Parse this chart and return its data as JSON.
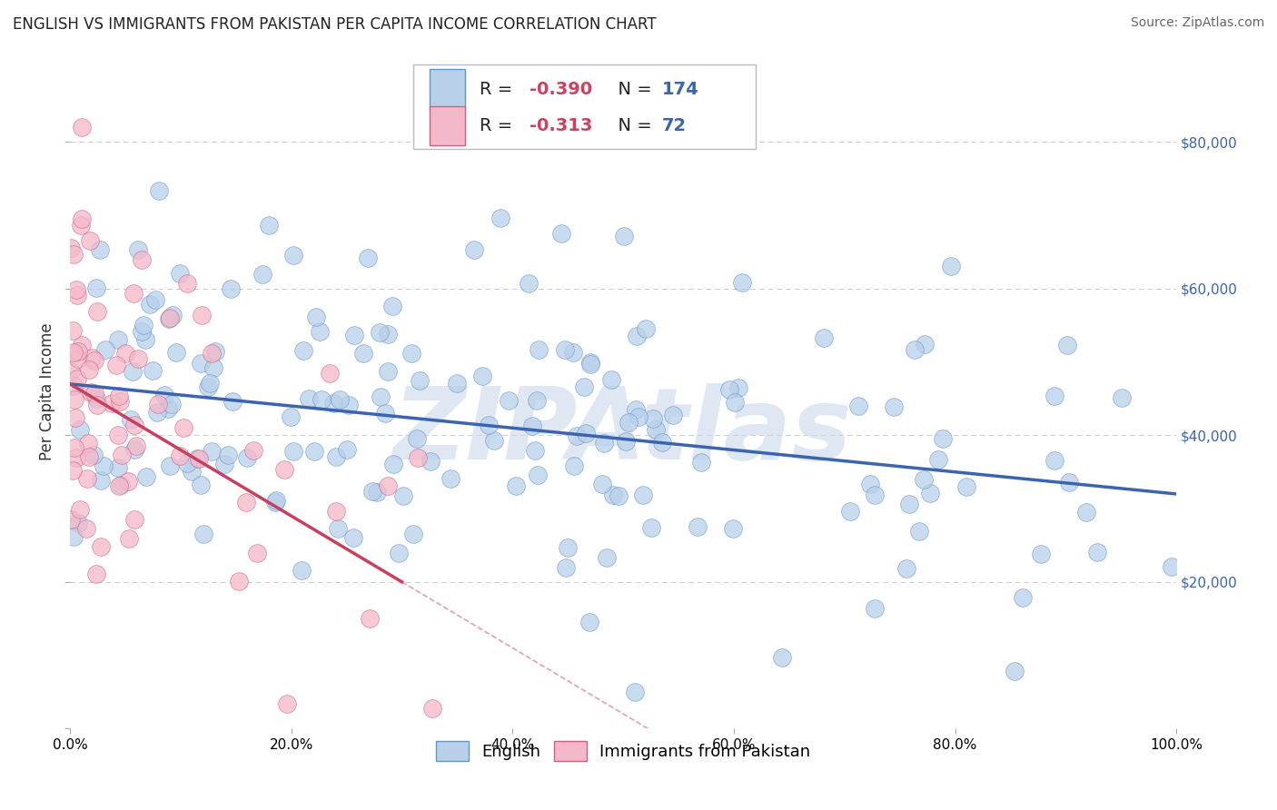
{
  "title": "ENGLISH VS IMMIGRANTS FROM PAKISTAN PER CAPITA INCOME CORRELATION CHART",
  "source": "Source: ZipAtlas.com",
  "ylabel": "Per Capita Income",
  "xlim": [
    0,
    1.0
  ],
  "ylim": [
    0,
    92000
  ],
  "xtick_labels": [
    "0.0%",
    "20.0%",
    "40.0%",
    "60.0%",
    "80.0%",
    "100.0%"
  ],
  "xtick_vals": [
    0.0,
    0.2,
    0.4,
    0.6,
    0.8,
    1.0
  ],
  "ytick_vals": [
    0,
    20000,
    40000,
    60000,
    80000
  ],
  "right_ytick_labels": [
    "",
    "$20,000",
    "$40,000",
    "$60,000",
    "$80,000"
  ],
  "english_face_color": "#b8d0ea",
  "english_edge_color": "#6495c8",
  "pakistan_face_color": "#f5b8c8",
  "pakistan_edge_color": "#d06080",
  "english_line_color": "#3a64b0",
  "pakistan_line_color": "#c84060",
  "english_r": -0.39,
  "english_n": 174,
  "pakistan_r": -0.313,
  "pakistan_n": 72,
  "watermark": "ZIPAtlas",
  "watermark_color": "#c8d8ea",
  "legend_label_english": "English",
  "legend_label_pakistan": "Immigrants from Pakistan",
  "grid_color": "#cccccc",
  "background_color": "#ffffff",
  "legend_r_color": "#d04060",
  "legend_n_color": "#3a64b0",
  "title_fontsize": 12,
  "axis_label_fontsize": 12,
  "tick_fontsize": 11,
  "legend_fontsize": 13,
  "eng_line_y0": 47000,
  "eng_line_y1": 32000,
  "pak_line_y0": 47000,
  "pak_line_x1": 0.3,
  "pak_line_y1": 20000
}
